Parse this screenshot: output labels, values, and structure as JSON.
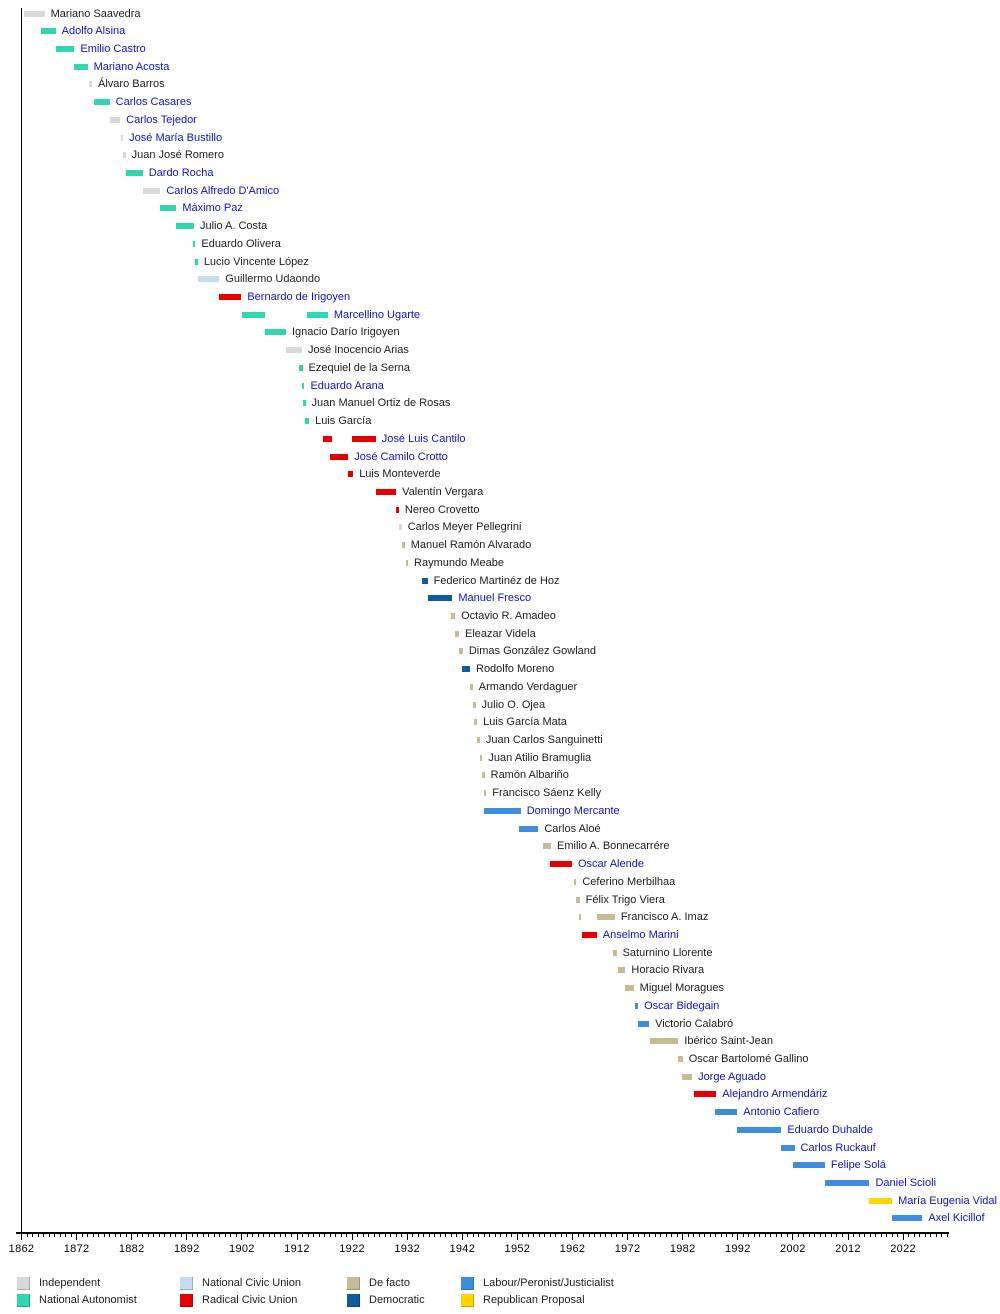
{
  "chart_data": {
    "type": "timeline",
    "description": "Gantt-style timeline of governors of Buenos Aires Province, one row per governor, bars colored by political party",
    "axis": {
      "unit": "year",
      "min": 1862,
      "max": 2030,
      "tick_interval": 1,
      "label_interval": 10,
      "tick_labels": [
        1862,
        1872,
        1882,
        1892,
        1902,
        1912,
        1922,
        1932,
        1942,
        1952,
        1962,
        1972,
        1982,
        1992,
        2002,
        2012,
        2022
      ],
      "grid": false
    },
    "parties": {
      "independent": {
        "label": "Independent",
        "color": "#d9d9d9"
      },
      "national_autonomist": {
        "label": "National Autonomist",
        "color": "#2fd6b0"
      },
      "national_civic_union": {
        "label": "National Civic Union",
        "color": "#c5dcf0"
      },
      "radical_civic_union": {
        "label": "Radical Civic Union",
        "color": "#e60000"
      },
      "de_facto": {
        "label": "De facto",
        "color": "#c9ba96"
      },
      "democratic": {
        "label": "Democratic",
        "color": "#0f5a9e"
      },
      "peronist": {
        "label": "Labour/Peronist/Justicialist",
        "color": "#3f8dde"
      },
      "republican_proposal": {
        "label": "Republican Proposal",
        "color": "#ffd400"
      }
    },
    "legend": {
      "columns": [
        [
          "independent",
          "national_autonomist"
        ],
        [
          "national_civic_union",
          "radical_civic_union"
        ],
        [
          "de_facto",
          "democratic"
        ],
        [
          "peronist",
          "republican_proposal"
        ]
      ]
    },
    "text_colors": {
      "link": "#0f0fc8",
      "plain": "#1c1c1c"
    },
    "governors": [
      {
        "name": "Mariano Saavedra",
        "party": "independent",
        "link": false,
        "terms": [
          [
            1862.5,
            1866.2
          ]
        ]
      },
      {
        "name": "Adolfo Alsina",
        "party": "national_autonomist",
        "link": true,
        "terms": [
          [
            1865.5,
            1868.2
          ]
        ]
      },
      {
        "name": "Emilio Castro",
        "party": "national_autonomist",
        "link": true,
        "terms": [
          [
            1868.2,
            1871.6
          ]
        ]
      },
      {
        "name": "Mariano Acosta",
        "party": "national_autonomist",
        "link": true,
        "terms": [
          [
            1871.6,
            1874.0
          ]
        ]
      },
      {
        "name": "Álvaro Barros",
        "party": "independent",
        "link": false,
        "terms": [
          [
            1874.2,
            1874.8
          ]
        ]
      },
      {
        "name": "Carlos Casares",
        "party": "national_autonomist",
        "link": true,
        "terms": [
          [
            1875.1,
            1878.0
          ]
        ]
      },
      {
        "name": "Carlos Tejedor",
        "party": "independent",
        "link": true,
        "terms": [
          [
            1878.0,
            1879.9
          ]
        ]
      },
      {
        "name": "José María Bustillo",
        "party": "independent",
        "link": true,
        "terms": [
          [
            1880.0,
            1880.4
          ]
        ]
      },
      {
        "name": "Juan José Romero",
        "party": "independent",
        "link": false,
        "terms": [
          [
            1880.4,
            1880.9
          ]
        ]
      },
      {
        "name": "Dardo Rocha",
        "party": "national_autonomist",
        "link": true,
        "terms": [
          [
            1880.9,
            1884.0
          ]
        ]
      },
      {
        "name": "Carlos Alfredo D'Amico",
        "party": "independent",
        "link": true,
        "terms": [
          [
            1884.0,
            1887.2
          ]
        ]
      },
      {
        "name": "Máximo Paz",
        "party": "national_autonomist",
        "link": true,
        "terms": [
          [
            1887.2,
            1890.1
          ]
        ]
      },
      {
        "name": "Julio A. Costa",
        "party": "national_autonomist",
        "link": false,
        "terms": [
          [
            1890.1,
            1893.3
          ]
        ]
      },
      {
        "name": "Eduardo Olivera",
        "party": "national_autonomist",
        "link": false,
        "terms": [
          [
            1893.1,
            1893.5
          ]
        ]
      },
      {
        "name": "Lucio Vincente López",
        "party": "national_autonomist",
        "link": false,
        "terms": [
          [
            1893.4,
            1894.0
          ]
        ]
      },
      {
        "name": "Guillermo Udaondo",
        "party": "national_civic_union",
        "link": false,
        "terms": [
          [
            1894.0,
            1897.9
          ]
        ]
      },
      {
        "name": "Bernardo de Irigoyen",
        "party": "radical_civic_union",
        "link": true,
        "terms": [
          [
            1897.9,
            1901.9
          ]
        ]
      },
      {
        "name": "Marcellino Ugarte",
        "party": "national_autonomist",
        "link": true,
        "terms": [
          [
            1902.1,
            1906.2
          ],
          [
            1913.9,
            1917.6
          ]
        ]
      },
      {
        "name": "Ignacio Darío Irigoyen",
        "party": "national_autonomist",
        "link": false,
        "terms": [
          [
            1906.2,
            1910.0
          ]
        ]
      },
      {
        "name": "José Inocencio Arias",
        "party": "independent",
        "link": false,
        "terms": [
          [
            1910.0,
            1912.9
          ]
        ]
      },
      {
        "name": "Ezequiel de la Serna",
        "party": "national_autonomist",
        "link": false,
        "terms": [
          [
            1912.4,
            1913.0
          ]
        ]
      },
      {
        "name": "Eduardo Arana",
        "party": "national_autonomist",
        "link": true,
        "terms": [
          [
            1912.9,
            1913.2
          ]
        ]
      },
      {
        "name": "Juan Manuel Ortiz de Rosas",
        "party": "national_autonomist",
        "link": false,
        "terms": [
          [
            1913.1,
            1913.5
          ]
        ]
      },
      {
        "name": "Luis García",
        "party": "national_autonomist",
        "link": false,
        "terms": [
          [
            1913.5,
            1914.2
          ]
        ]
      },
      {
        "name": "José Luis Cantilo",
        "party": "radical_civic_union",
        "link": true,
        "terms": [
          [
            1916.8,
            1918.4
          ],
          [
            1922.0,
            1926.3
          ]
        ]
      },
      {
        "name": "José Camilo Crotto",
        "party": "radical_civic_union",
        "link": true,
        "terms": [
          [
            1917.9,
            1921.3
          ]
        ]
      },
      {
        "name": "Luis Monteverde",
        "party": "radical_civic_union",
        "link": false,
        "terms": [
          [
            1921.3,
            1922.2
          ]
        ]
      },
      {
        "name": "Valentín Vergara",
        "party": "radical_civic_union",
        "link": false,
        "terms": [
          [
            1926.3,
            1930.0
          ]
        ]
      },
      {
        "name": "Nereo Crovetto",
        "party": "radical_civic_union",
        "link": false,
        "terms": [
          [
            1930.0,
            1930.5
          ]
        ]
      },
      {
        "name": "Carlos Meyer Pellegrini",
        "party": "independent",
        "link": false,
        "terms": [
          [
            1930.5,
            1931.0
          ]
        ]
      },
      {
        "name": "Manuel Ramón Alvarado",
        "party": "de_facto",
        "link": false,
        "terms": [
          [
            1931.1,
            1931.5
          ]
        ]
      },
      {
        "name": "Raymundo Meabe",
        "party": "de_facto",
        "link": false,
        "terms": [
          [
            1931.7,
            1932.1
          ]
        ]
      },
      {
        "name": "Federico Martinéz de Hoz",
        "party": "democratic",
        "link": false,
        "terms": [
          [
            1934.6,
            1935.7
          ]
        ]
      },
      {
        "name": "Manuel Fresco",
        "party": "democratic",
        "link": true,
        "terms": [
          [
            1935.7,
            1940.2
          ]
        ]
      },
      {
        "name": "Octavio R. Amadeo",
        "party": "de_facto",
        "link": false,
        "terms": [
          [
            1939.9,
            1940.7
          ]
        ]
      },
      {
        "name": "Eleazar Videla",
        "party": "de_facto",
        "link": false,
        "terms": [
          [
            1940.7,
            1941.4
          ]
        ]
      },
      {
        "name": "Dimas González Gowland",
        "party": "de_facto",
        "link": false,
        "terms": [
          [
            1941.4,
            1942.1
          ]
        ]
      },
      {
        "name": "Rodolfo Moreno",
        "party": "democratic",
        "link": false,
        "terms": [
          [
            1942.0,
            1943.4
          ]
        ]
      },
      {
        "name": "Armando Verdaguer",
        "party": "de_facto",
        "link": false,
        "terms": [
          [
            1943.4,
            1943.9
          ]
        ]
      },
      {
        "name": "Julio O. Ojea",
        "party": "de_facto",
        "link": false,
        "terms": [
          [
            1943.9,
            1944.4
          ]
        ]
      },
      {
        "name": "Luis García Mata",
        "party": "de_facto",
        "link": false,
        "terms": [
          [
            1944.2,
            1944.7
          ]
        ]
      },
      {
        "name": "Juan Carlos Sanguinetti",
        "party": "de_facto",
        "link": false,
        "terms": [
          [
            1944.7,
            1945.2
          ]
        ]
      },
      {
        "name": "Juan Atilio Bramuglia",
        "party": "de_facto",
        "link": false,
        "terms": [
          [
            1945.2,
            1945.6
          ]
        ]
      },
      {
        "name": "Ramón Albariño",
        "party": "de_facto",
        "link": false,
        "terms": [
          [
            1945.6,
            1945.9
          ]
        ]
      },
      {
        "name": "Francisco Sáenz Kelly",
        "party": "de_facto",
        "link": false,
        "terms": [
          [
            1945.9,
            1946.3
          ]
        ]
      },
      {
        "name": "Domingo Mercante",
        "party": "peronist",
        "link": true,
        "terms": [
          [
            1946.0,
            1952.6
          ]
        ]
      },
      {
        "name": "Carlos Aloé",
        "party": "peronist",
        "link": false,
        "terms": [
          [
            1952.3,
            1955.8
          ]
        ]
      },
      {
        "name": "Emilio A. Bonnecarrére",
        "party": "de_facto",
        "link": false,
        "terms": [
          [
            1956.6,
            1958.1
          ]
        ]
      },
      {
        "name": "Oscar Alende",
        "party": "radical_civic_union",
        "link": true,
        "terms": [
          [
            1957.9,
            1961.9
          ]
        ]
      },
      {
        "name": "Ceferino Merbilhaa",
        "party": "de_facto",
        "link": false,
        "terms": [
          [
            1962.2,
            1962.7
          ]
        ]
      },
      {
        "name": "Félix Trigo Viera",
        "party": "de_facto",
        "link": false,
        "terms": [
          [
            1962.7,
            1963.3
          ]
        ]
      },
      {
        "name": "Francisco A. Imaz",
        "party": "de_facto",
        "link": false,
        "terms": [
          [
            1963.1,
            1963.6
          ],
          [
            1966.5,
            1969.7
          ]
        ]
      },
      {
        "name": "Anselmo Marini",
        "party": "radical_civic_union",
        "link": true,
        "terms": [
          [
            1963.7,
            1966.4
          ]
        ]
      },
      {
        "name": "Saturnino Llorente",
        "party": "de_facto",
        "link": false,
        "terms": [
          [
            1969.3,
            1970.0
          ]
        ]
      },
      {
        "name": "Horacio Rivara",
        "party": "de_facto",
        "link": false,
        "terms": [
          [
            1970.2,
            1971.6
          ]
        ]
      },
      {
        "name": "Miguel Moragues",
        "party": "de_facto",
        "link": false,
        "terms": [
          [
            1971.6,
            1973.1
          ]
        ]
      },
      {
        "name": "Oscar Bidegain",
        "party": "peronist",
        "link": true,
        "terms": [
          [
            1973.4,
            1973.9
          ]
        ]
      },
      {
        "name": "Victorio Calabró",
        "party": "peronist",
        "link": false,
        "terms": [
          [
            1973.8,
            1975.9
          ]
        ]
      },
      {
        "name": "Ibérico Saint-Jean",
        "party": "de_facto",
        "link": false,
        "terms": [
          [
            1976.1,
            1981.2
          ]
        ]
      },
      {
        "name": "Oscar Bartolomé Gallino",
        "party": "de_facto",
        "link": false,
        "terms": [
          [
            1981.2,
            1982.0
          ]
        ]
      },
      {
        "name": "Jorge Aguado",
        "party": "de_facto",
        "link": true,
        "terms": [
          [
            1981.8,
            1983.7
          ]
        ]
      },
      {
        "name": "Alejandro Armendáriz",
        "party": "radical_civic_union",
        "link": true,
        "terms": [
          [
            1984.0,
            1988.1
          ]
        ]
      },
      {
        "name": "Antonio Cafiero",
        "party": "peronist",
        "link": true,
        "terms": [
          [
            1987.9,
            1991.9
          ]
        ]
      },
      {
        "name": "Eduardo Duhalde",
        "party": "peronist",
        "link": true,
        "terms": [
          [
            1991.8,
            1999.9
          ]
        ]
      },
      {
        "name": "Carlos Ruckauf",
        "party": "peronist",
        "link": true,
        "terms": [
          [
            1999.9,
            2002.3
          ]
        ]
      },
      {
        "name": "Felipe Solá",
        "party": "peronist",
        "link": true,
        "terms": [
          [
            2002.1,
            2007.8
          ]
        ]
      },
      {
        "name": "Daniel Scioli",
        "party": "peronist",
        "link": true,
        "terms": [
          [
            2007.8,
            2015.9
          ]
        ]
      },
      {
        "name": "María Eugenia Vidal",
        "party": "republican_proposal",
        "link": true,
        "terms": [
          [
            2015.9,
            2020.0
          ]
        ]
      },
      {
        "name": "Axel Kicillof",
        "party": "peronist",
        "link": true,
        "terms": [
          [
            2020.0,
            2025.5
          ]
        ]
      }
    ]
  }
}
